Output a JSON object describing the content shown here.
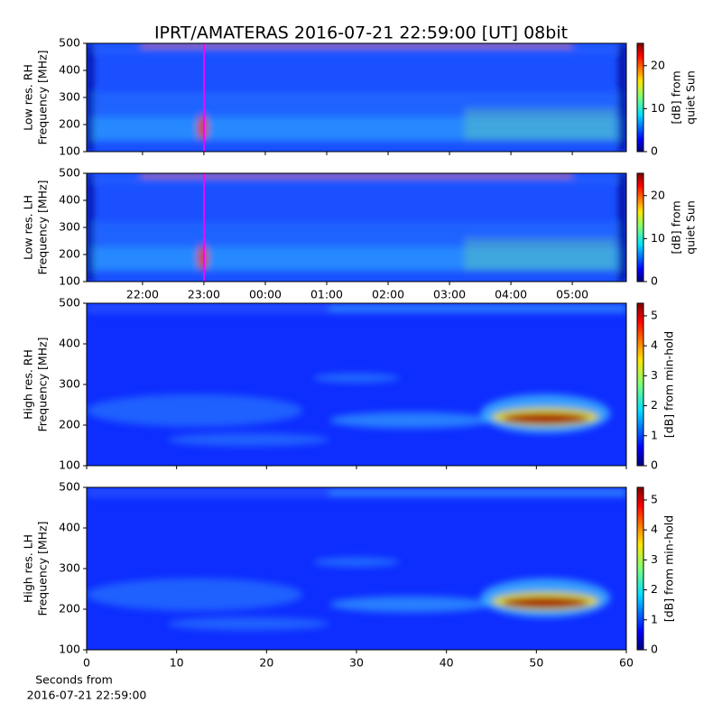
{
  "title": "IPRT/AMATERAS 2016-07-21 22:59:00 [UT]   08bit",
  "chart_data": [
    {
      "type": "spectrogram",
      "ylabel": [
        "Low res. RH",
        "Frequency [MHz]"
      ],
      "ylim": [
        100,
        500
      ],
      "yticks": [
        100,
        200,
        300,
        400,
        500
      ],
      "xlim": [
        21.09,
        29.88
      ],
      "xticks": [
        {
          "value": 22,
          "label": "22:00"
        },
        {
          "value": 23,
          "label": "23:00"
        },
        {
          "value": 24,
          "label": "00:00"
        },
        {
          "value": 25,
          "label": "01:00"
        },
        {
          "value": 26,
          "label": "02:00"
        },
        {
          "value": 27,
          "label": "03:00"
        },
        {
          "value": 28,
          "label": "04:00"
        },
        {
          "value": 29,
          "label": "05:00"
        }
      ],
      "xticklabels": false,
      "resolution": "low",
      "markers": [
        {
          "x": 23,
          "color": "#ff00ff"
        }
      ],
      "colorbar": {
        "label": [
          "[dB] from",
          "quiet Sun"
        ],
        "lim": [
          0,
          25.2
        ],
        "ticks": [
          0,
          10,
          20
        ],
        "colormap": "jet"
      }
    },
    {
      "type": "spectrogram",
      "ylabel": [
        "Low res. LH",
        "Frequency [MHz]"
      ],
      "ylim": [
        100,
        500
      ],
      "yticks": [
        100,
        200,
        300,
        400,
        500
      ],
      "xlim": [
        21.09,
        29.88
      ],
      "xticks": [
        {
          "value": 22,
          "label": "22:00"
        },
        {
          "value": 23,
          "label": "23:00"
        },
        {
          "value": 24,
          "label": "00:00"
        },
        {
          "value": 25,
          "label": "01:00"
        },
        {
          "value": 26,
          "label": "02:00"
        },
        {
          "value": 27,
          "label": "03:00"
        },
        {
          "value": 28,
          "label": "04:00"
        },
        {
          "value": 29,
          "label": "05:00"
        }
      ],
      "xticklabels": true,
      "resolution": "low",
      "markers": [
        {
          "x": 23,
          "color": "#ff00ff"
        }
      ],
      "colorbar": {
        "label": [
          "[dB] from",
          "quiet Sun"
        ],
        "lim": [
          0,
          25.2
        ],
        "ticks": [
          0,
          10,
          20
        ],
        "colormap": "jet"
      }
    },
    {
      "type": "spectrogram",
      "ylabel": [
        "High res. RH",
        "Frequency [MHz]"
      ],
      "ylim": [
        100,
        500
      ],
      "yticks": [
        100,
        200,
        300,
        400,
        500
      ],
      "xlim": [
        0,
        60
      ],
      "xticks": [
        0,
        10,
        20,
        30,
        40,
        50,
        60
      ],
      "xticklabels": false,
      "resolution": "high",
      "colorbar": {
        "label": [
          "[dB] from min-hold"
        ],
        "lim": [
          0,
          5.42
        ],
        "ticks": [
          0,
          1,
          2,
          3,
          4,
          5
        ],
        "colormap": "jet"
      }
    },
    {
      "type": "spectrogram",
      "ylabel": [
        "High res. LH",
        "Frequency [MHz]"
      ],
      "ylim": [
        100,
        500
      ],
      "yticks": [
        100,
        200,
        300,
        400,
        500
      ],
      "xlim": [
        0,
        60
      ],
      "xticks": [
        0,
        10,
        20,
        30,
        40,
        50,
        60
      ],
      "xticklabels": true,
      "resolution": "high",
      "xlabel": [
        "Seconds from",
        "2016-07-21 22:59:00"
      ],
      "colorbar": {
        "label": [
          "[dB] from min-hold"
        ],
        "lim": [
          0,
          5.42
        ],
        "ticks": [
          0,
          1,
          2,
          3,
          4,
          5
        ],
        "colormap": "jet"
      }
    }
  ]
}
